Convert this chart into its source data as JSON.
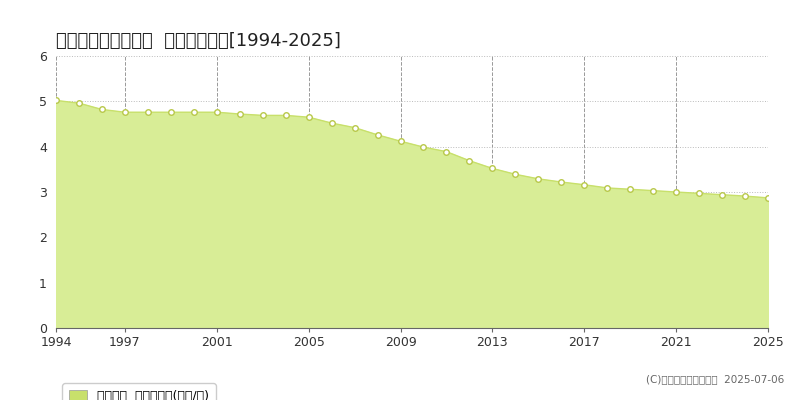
{
  "title": "上北郡野辺地町中道  公示地価推移[1994-2025]",
  "years": [
    1994,
    1995,
    1996,
    1997,
    1998,
    1999,
    2000,
    2001,
    2002,
    2003,
    2004,
    2005,
    2006,
    2007,
    2008,
    2009,
    2010,
    2011,
    2012,
    2013,
    2014,
    2015,
    2016,
    2017,
    2018,
    2019,
    2020,
    2021,
    2022,
    2023,
    2024,
    2025
  ],
  "values": [
    5.02,
    4.96,
    4.82,
    4.76,
    4.76,
    4.76,
    4.76,
    4.76,
    4.72,
    4.69,
    4.69,
    4.65,
    4.52,
    4.42,
    4.26,
    4.12,
    3.99,
    3.89,
    3.69,
    3.52,
    3.39,
    3.29,
    3.22,
    3.16,
    3.09,
    3.06,
    3.03,
    3.0,
    2.97,
    2.94,
    2.91,
    2.87
  ],
  "line_color": "#c8e06b",
  "fill_color": "#d8ed96",
  "marker_facecolor": "#ffffff",
  "marker_edge_color": "#b8c84a",
  "background_color": "#ffffff",
  "plot_bg_color": "#ffffff",
  "grid_color_h": "#bbbbbb",
  "grid_color_v": "#999999",
  "ylim": [
    0,
    6
  ],
  "yticks": [
    0,
    1,
    2,
    3,
    4,
    5,
    6
  ],
  "xticks": [
    1994,
    1997,
    2001,
    2005,
    2009,
    2013,
    2017,
    2021,
    2025
  ],
  "legend_label": "公示地価  平均坪単価(万円/坪)",
  "legend_color": "#c8e06b",
  "copyright_text": "(C)土地価格ドットコム  2025-07-06",
  "title_fontsize": 13,
  "tick_fontsize": 9,
  "legend_fontsize": 9
}
